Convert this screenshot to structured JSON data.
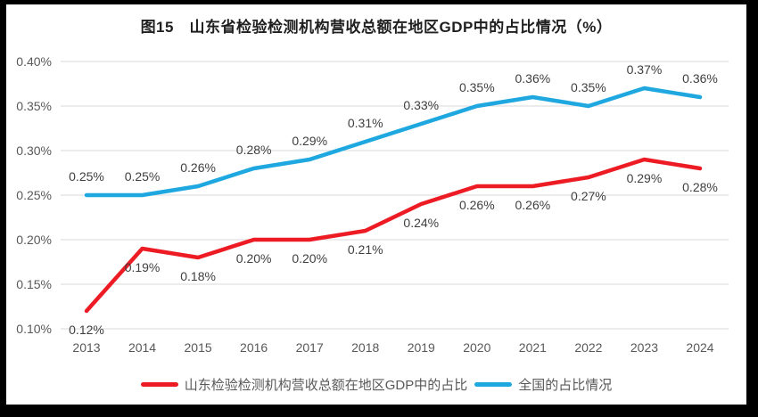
{
  "title": "图15　山东省检验检测机构营收总额在地区GDP中的占比情况（%）",
  "frame": {
    "border_color": "#000000",
    "background_color": "#ffffff"
  },
  "chart_data": {
    "type": "line",
    "categories": [
      "2013",
      "2014",
      "2015",
      "2016",
      "2017",
      "2018",
      "2019",
      "2020",
      "2021",
      "2022",
      "2023",
      "2024"
    ],
    "series": [
      {
        "name": "山东检验检测机构营收总额在地区GDP中的占比",
        "color": "#ED1C24",
        "values": [
          0.12,
          0.19,
          0.18,
          0.2,
          0.2,
          0.21,
          0.24,
          0.26,
          0.26,
          0.27,
          0.29,
          0.28
        ],
        "label_position": "below"
      },
      {
        "name": "全国的占比情况",
        "color": "#1FA8E0",
        "values": [
          0.25,
          0.25,
          0.26,
          0.28,
          0.29,
          0.31,
          0.33,
          0.35,
          0.36,
          0.35,
          0.37,
          0.36
        ],
        "label_position": "above"
      }
    ],
    "title": "图15　山东省检验检测机构营收总额在地区GDP中的占比情况（%）",
    "xlabel": "",
    "ylabel": "",
    "ylim": [
      0.1,
      0.4
    ],
    "ytick_step": 0.05,
    "ytick_labels": [
      "0.10%",
      "0.15%",
      "0.20%",
      "0.25%",
      "0.30%",
      "0.35%",
      "0.40%"
    ],
    "value_suffix": "%",
    "grid": true,
    "legend_position": "bottom",
    "colors": {
      "grid": "#d9d9d9",
      "tick_label": "#595959",
      "data_label": "#3f3f3f"
    }
  }
}
